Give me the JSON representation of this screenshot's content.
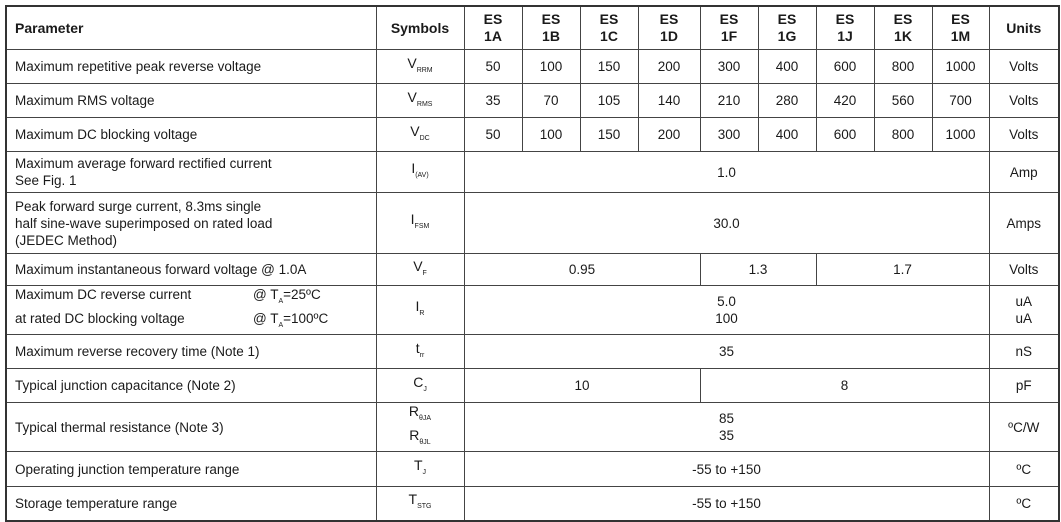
{
  "header": {
    "parameter": "Parameter",
    "symbols": "Symbols",
    "parts": [
      [
        "ES",
        "1A"
      ],
      [
        "ES",
        "1B"
      ],
      [
        "ES",
        "1C"
      ],
      [
        "ES",
        "1D"
      ],
      [
        "ES",
        "1F"
      ],
      [
        "ES",
        "1G"
      ],
      [
        "ES",
        "1J"
      ],
      [
        "ES",
        "1K"
      ],
      [
        "ES",
        "1M"
      ]
    ],
    "units": "Units"
  },
  "rows": [
    {
      "param": [
        "Maximum repetitive peak reverse voltage"
      ],
      "symbols": [
        {
          "m": "V",
          "s": "RRM"
        }
      ],
      "values": [
        {
          "t": "50",
          "span": 1
        },
        {
          "t": "100",
          "span": 1
        },
        {
          "t": "150",
          "span": 1
        },
        {
          "t": "200",
          "span": 1
        },
        {
          "t": "300",
          "span": 1
        },
        {
          "t": "400",
          "span": 1
        },
        {
          "t": "600",
          "span": 1
        },
        {
          "t": "800",
          "span": 1
        },
        {
          "t": "1000",
          "span": 1
        }
      ],
      "unit": [
        "Volts"
      ]
    },
    {
      "param": [
        "Maximum RMS voltage"
      ],
      "symbols": [
        {
          "m": "V",
          "s": "RMS"
        }
      ],
      "values": [
        {
          "t": "35",
          "span": 1
        },
        {
          "t": "70",
          "span": 1
        },
        {
          "t": "105",
          "span": 1
        },
        {
          "t": "140",
          "span": 1
        },
        {
          "t": "210",
          "span": 1
        },
        {
          "t": "280",
          "span": 1
        },
        {
          "t": "420",
          "span": 1
        },
        {
          "t": "560",
          "span": 1
        },
        {
          "t": "700",
          "span": 1
        }
      ],
      "unit": [
        "Volts"
      ]
    },
    {
      "param": [
        "Maximum DC blocking voltage"
      ],
      "symbols": [
        {
          "m": "V",
          "s": "DC"
        }
      ],
      "values": [
        {
          "t": "50",
          "span": 1
        },
        {
          "t": "100",
          "span": 1
        },
        {
          "t": "150",
          "span": 1
        },
        {
          "t": "200",
          "span": 1
        },
        {
          "t": "300",
          "span": 1
        },
        {
          "t": "400",
          "span": 1
        },
        {
          "t": "600",
          "span": 1
        },
        {
          "t": "800",
          "span": 1
        },
        {
          "t": "1000",
          "span": 1
        }
      ],
      "unit": [
        "Volts"
      ]
    },
    {
      "param": [
        "Maximum average forward rectified current",
        "See Fig. 1"
      ],
      "symbols": [
        {
          "m": "I",
          "s": "(AV)"
        }
      ],
      "values": [
        {
          "t": "1.0",
          "span": 9
        }
      ],
      "unit": [
        "Amp"
      ]
    },
    {
      "param": [
        "Peak forward surge current, 8.3ms single",
        "half sine-wave superimposed on rated load",
        "(JEDEC Method)"
      ],
      "symbols": [
        {
          "m": "I",
          "s": "FSM"
        }
      ],
      "values": [
        {
          "t": "30.0",
          "span": 9
        }
      ],
      "unit": [
        "Amps"
      ]
    },
    {
      "param": [
        "Maximum instantaneous forward voltage @ 1.0A"
      ],
      "symbols": [
        {
          "m": "V",
          "s": "F"
        }
      ],
      "values": [
        {
          "t": "0.95",
          "span": 4
        },
        {
          "t": "1.3",
          "span": 2
        },
        {
          "t": "1.7",
          "span": 3
        }
      ],
      "unit": [
        "Volts"
      ]
    },
    {
      "param": [],
      "ir": [
        {
          "l": "Maximum DC reverse current",
          "c": "@ T",
          "cs": "A",
          "v": "=25ºC"
        },
        {
          "l": "at rated DC blocking voltage",
          "c": "@ T",
          "cs": "A",
          "v": "=100ºC"
        }
      ],
      "symbols": [
        {
          "m": "I",
          "s": "R"
        }
      ],
      "values": [
        {
          "t": "5.0\n100",
          "span": 9
        }
      ],
      "unit": [
        "uA",
        "uA"
      ]
    },
    {
      "param": [
        "Maximum reverse recovery time (Note 1)"
      ],
      "symbols": [
        {
          "m": "t",
          "s": "rr"
        }
      ],
      "values": [
        {
          "t": "35",
          "span": 9
        }
      ],
      "unit": [
        "nS"
      ]
    },
    {
      "param": [
        "Typical junction capacitance (Note 2)"
      ],
      "symbols": [
        {
          "m": "C",
          "s": "J"
        }
      ],
      "values": [
        {
          "t": "10",
          "span": 4
        },
        {
          "t": "8",
          "span": 5
        }
      ],
      "unit": [
        "pF"
      ]
    },
    {
      "param": [
        "Typical thermal resistance (Note 3)"
      ],
      "symbols": [
        {
          "m": "R",
          "s": "θJA"
        },
        {
          "m": "R",
          "s": "θJL"
        }
      ],
      "values": [
        {
          "t": "85\n35",
          "span": 9
        }
      ],
      "unit": [
        "ºC/W"
      ]
    },
    {
      "param": [
        "Operating junction temperature range"
      ],
      "symbols": [
        {
          "m": "T",
          "s": "J"
        }
      ],
      "values": [
        {
          "t": "-55 to +150",
          "span": 9
        }
      ],
      "unit": [
        "ºC"
      ]
    },
    {
      "param": [
        "Storage temperature range"
      ],
      "symbols": [
        {
          "m": "T",
          "s": "STG"
        }
      ],
      "values": [
        {
          "t": "-55 to +150",
          "span": 9
        }
      ],
      "unit": [
        "ºC"
      ]
    }
  ]
}
